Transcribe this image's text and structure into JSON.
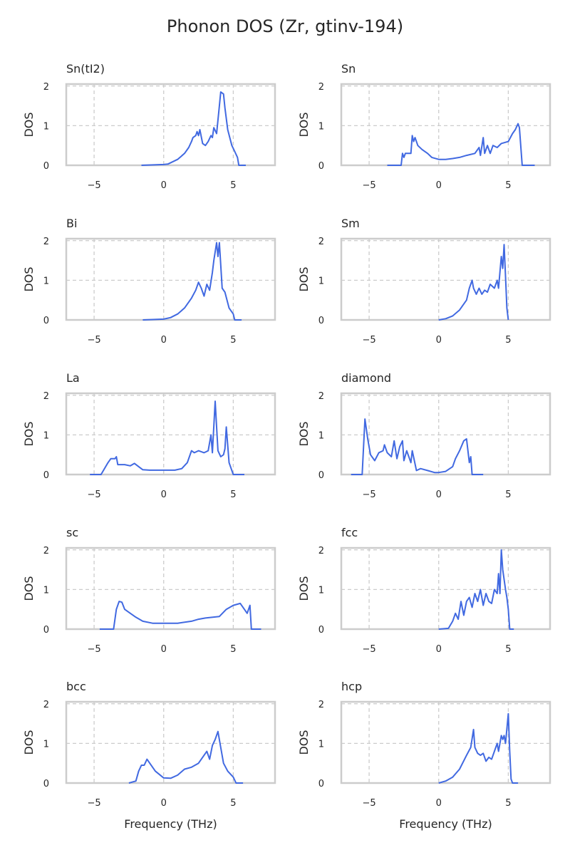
{
  "chart_data": {
    "title": "Phonon DOS (Zr, gtinv-194)",
    "type": "line",
    "xlabel": "Frequency (THz)",
    "ylabel": "DOS",
    "xlim": [
      -7,
      8
    ],
    "ylim": [
      0,
      2.05
    ],
    "xticks": [
      -5,
      0,
      5
    ],
    "yticks": [
      0,
      1,
      2
    ],
    "grid": true,
    "line_color": "#4169e1",
    "panels": [
      {
        "title": "Sn(tI2)",
        "x": [
          -1.6,
          0,
          0.3,
          1,
          1.5,
          1.8,
          2,
          2.1,
          2.3,
          2.4,
          2.5,
          2.6,
          2.8,
          3.0,
          3.2,
          3.4,
          3.5,
          3.6,
          3.8,
          4.0,
          4.1,
          4.3,
          4.4,
          4.6,
          4.9,
          5.1,
          5.3,
          5.4,
          5.9
        ],
        "y": [
          0,
          0.02,
          0.03,
          0.15,
          0.3,
          0.45,
          0.6,
          0.7,
          0.75,
          0.85,
          0.75,
          0.9,
          0.55,
          0.5,
          0.6,
          0.75,
          0.7,
          0.95,
          0.8,
          1.5,
          1.85,
          1.8,
          1.45,
          0.9,
          0.5,
          0.35,
          0.2,
          0,
          0
        ]
      },
      {
        "title": "Sn",
        "x": [
          -3.7,
          -2.7,
          -2.6,
          -2.5,
          -2.4,
          -2.0,
          -1.9,
          -1.8,
          -1.7,
          -1.5,
          -1.2,
          -0.8,
          -0.5,
          0,
          0.5,
          1,
          1.5,
          2,
          2.6,
          2.9,
          3.0,
          3.2,
          3.3,
          3.5,
          3.7,
          3.9,
          4.2,
          4.5,
          5,
          5.3,
          5.5,
          5.7,
          5.8,
          6.0,
          6.9
        ],
        "y": [
          0,
          0,
          0.3,
          0.2,
          0.3,
          0.3,
          0.75,
          0.6,
          0.7,
          0.5,
          0.4,
          0.3,
          0.2,
          0.15,
          0.15,
          0.17,
          0.2,
          0.25,
          0.3,
          0.45,
          0.25,
          0.7,
          0.3,
          0.5,
          0.3,
          0.5,
          0.45,
          0.55,
          0.6,
          0.8,
          0.9,
          1.05,
          0.95,
          0,
          0
        ]
      },
      {
        "title": "Bi",
        "x": [
          -1.5,
          0,
          0.5,
          1,
          1.5,
          2,
          2.3,
          2.5,
          2.7,
          2.9,
          3.1,
          3.3,
          3.5,
          3.6,
          3.8,
          3.9,
          4.0,
          4.2,
          4.4,
          4.7,
          5.0,
          5.1,
          5.6
        ],
        "y": [
          0,
          0.02,
          0.06,
          0.15,
          0.3,
          0.55,
          0.75,
          0.95,
          0.8,
          0.6,
          0.9,
          0.75,
          1.2,
          1.5,
          1.95,
          1.6,
          1.95,
          0.8,
          0.7,
          0.3,
          0.15,
          0,
          0
        ]
      },
      {
        "title": "Sm",
        "x": [
          0,
          0.5,
          1,
          1.5,
          2,
          2.2,
          2.4,
          2.5,
          2.7,
          2.9,
          3.1,
          3.3,
          3.5,
          3.7,
          4.0,
          4.2,
          4.3,
          4.5,
          4.6,
          4.7,
          4.8,
          4.9,
          5.0
        ],
        "y": [
          0,
          0.03,
          0.1,
          0.25,
          0.5,
          0.8,
          1.0,
          0.8,
          0.65,
          0.8,
          0.65,
          0.75,
          0.7,
          0.9,
          0.8,
          1.0,
          0.8,
          1.6,
          1.3,
          1.9,
          1.1,
          0.3,
          0
        ]
      },
      {
        "title": "La",
        "x": [
          -5.3,
          -4.5,
          -4.0,
          -3.8,
          -3.5,
          -3.4,
          -3.3,
          -2.8,
          -2.4,
          -2.1,
          -1.8,
          -1.5,
          -1,
          0,
          0.8,
          1.3,
          1.7,
          2.0,
          2.2,
          2.5,
          2.9,
          3.2,
          3.4,
          3.5,
          3.7,
          3.8,
          3.9,
          4.1,
          4.3,
          4.4,
          4.5,
          4.7,
          5.0,
          5.8
        ],
        "y": [
          0,
          0,
          0.3,
          0.4,
          0.4,
          0.45,
          0.25,
          0.25,
          0.22,
          0.28,
          0.2,
          0.12,
          0.11,
          0.11,
          0.11,
          0.15,
          0.3,
          0.6,
          0.55,
          0.6,
          0.55,
          0.6,
          1.0,
          0.55,
          1.85,
          1.2,
          0.6,
          0.45,
          0.5,
          0.65,
          1.2,
          0.3,
          0,
          0
        ]
      },
      {
        "title": "diamond",
        "x": [
          -6.3,
          -5.5,
          -5.3,
          -5.1,
          -4.9,
          -4.6,
          -4.3,
          -4.0,
          -3.9,
          -3.7,
          -3.4,
          -3.2,
          -3.0,
          -2.8,
          -2.6,
          -2.5,
          -2.3,
          -2.0,
          -1.9,
          -1.6,
          -1.3,
          -0.8,
          -0.3,
          0,
          0.5,
          1.0,
          1.2,
          1.5,
          1.8,
          2.0,
          2.2,
          2.3,
          2.4,
          3.2
        ],
        "y": [
          0,
          0,
          1.4,
          0.9,
          0.5,
          0.35,
          0.55,
          0.6,
          0.75,
          0.55,
          0.45,
          0.85,
          0.4,
          0.7,
          0.85,
          0.35,
          0.6,
          0.3,
          0.6,
          0.1,
          0.15,
          0.1,
          0.05,
          0.05,
          0.08,
          0.2,
          0.4,
          0.6,
          0.85,
          0.9,
          0.3,
          0.45,
          0,
          0
        ]
      },
      {
        "title": "sc",
        "x": [
          -4.6,
          -3.6,
          -3.4,
          -3.2,
          -3.0,
          -2.8,
          -2.4,
          -2.0,
          -1.5,
          -0.8,
          0,
          1,
          2,
          2.5,
          3,
          4,
          4.5,
          5,
          5.5,
          5.8,
          6.0,
          6.2,
          6.3,
          7.0
        ],
        "y": [
          0,
          0,
          0.5,
          0.7,
          0.68,
          0.5,
          0.4,
          0.3,
          0.2,
          0.15,
          0.15,
          0.15,
          0.2,
          0.25,
          0.28,
          0.32,
          0.5,
          0.6,
          0.65,
          0.5,
          0.4,
          0.6,
          0,
          0
        ]
      },
      {
        "title": "fcc",
        "x": [
          0,
          0.7,
          1,
          1.2,
          1.4,
          1.6,
          1.8,
          2.0,
          2.2,
          2.4,
          2.6,
          2.8,
          3.0,
          3.2,
          3.4,
          3.6,
          3.8,
          4.0,
          4.2,
          4.3,
          4.4,
          4.5,
          4.6,
          4.8,
          4.9,
          5.0,
          5.1,
          5.4
        ],
        "y": [
          0,
          0.02,
          0.2,
          0.4,
          0.25,
          0.7,
          0.35,
          0.7,
          0.8,
          0.55,
          0.9,
          0.7,
          1.0,
          0.6,
          0.9,
          0.7,
          0.65,
          1.0,
          0.9,
          1.4,
          0.9,
          2.0,
          1.5,
          1.0,
          0.8,
          0.5,
          0,
          0
        ]
      },
      {
        "title": "bcc",
        "x": [
          -2.5,
          -2.0,
          -1.8,
          -1.6,
          -1.4,
          -1.2,
          -1.0,
          -0.6,
          0,
          0.5,
          1,
          1.5,
          2,
          2.5,
          3,
          3.1,
          3.3,
          3.5,
          3.7,
          3.9,
          4.1,
          4.3,
          4.6,
          5,
          5.2,
          5.7
        ],
        "y": [
          0,
          0.05,
          0.3,
          0.45,
          0.45,
          0.6,
          0.5,
          0.3,
          0.13,
          0.12,
          0.2,
          0.35,
          0.4,
          0.5,
          0.75,
          0.8,
          0.6,
          0.95,
          1.1,
          1.3,
          0.9,
          0.5,
          0.3,
          0.15,
          0,
          0
        ]
      },
      {
        "title": "hcp",
        "x": [
          0,
          0.5,
          1,
          1.5,
          2,
          2.3,
          2.5,
          2.6,
          2.8,
          3,
          3.2,
          3.4,
          3.6,
          3.8,
          4,
          4.2,
          4.3,
          4.5,
          4.6,
          4.7,
          4.8,
          5.0,
          5.1,
          5.2,
          5.3,
          5.7
        ],
        "y": [
          0,
          0.05,
          0.15,
          0.35,
          0.7,
          0.9,
          1.35,
          0.9,
          0.75,
          0.7,
          0.75,
          0.55,
          0.65,
          0.6,
          0.8,
          1.0,
          0.8,
          1.2,
          1.1,
          1.2,
          1.0,
          1.75,
          0.8,
          0.1,
          0,
          0
        ]
      }
    ]
  }
}
